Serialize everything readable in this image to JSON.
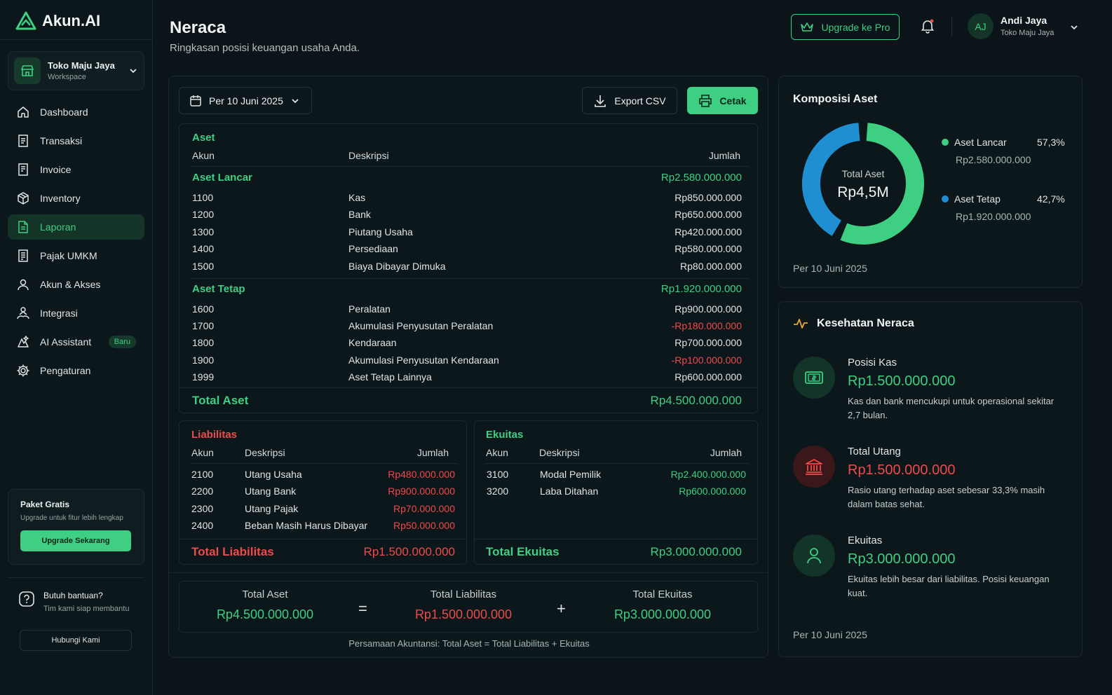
{
  "brand": {
    "name": "Akun.AI"
  },
  "workspace": {
    "name": "Toko Maju Jaya",
    "sub": "Workspace"
  },
  "nav": [
    {
      "label": "Dashboard",
      "icon": "home-icon"
    },
    {
      "label": "Transaksi",
      "icon": "receipt-icon"
    },
    {
      "label": "Invoice",
      "icon": "invoice-icon"
    },
    {
      "label": "Inventory",
      "icon": "box-icon"
    },
    {
      "label": "Laporan",
      "icon": "report-icon",
      "active": true
    },
    {
      "label": "Pajak UMKM",
      "icon": "tax-icon"
    },
    {
      "label": "Akun & Akses",
      "icon": "user-icon"
    },
    {
      "label": "Integrasi",
      "icon": "integration-icon"
    },
    {
      "label": "AI Assistant",
      "icon": "ai-icon",
      "badge": "Baru"
    },
    {
      "label": "Pengaturan",
      "icon": "gear-icon"
    }
  ],
  "promo": {
    "title": "Paket Gratis",
    "sub": "Upgrade untuk fitur lebih lengkap",
    "button": "Upgrade Sekarang"
  },
  "help": {
    "title": "Butuh bantuan?",
    "sub": "Tim kami siap membantu",
    "button": "Hubungi Kami"
  },
  "header": {
    "title": "Neraca",
    "subtitle": "Ringkasan posisi keuangan usaha Anda.",
    "upgrade": "Upgrade ke Pro",
    "user_initials": "AJ",
    "user_name": "Andi Jaya",
    "user_org": "Toko Maju Jaya"
  },
  "toolbar": {
    "date": "Per 10 Juni 2025",
    "export": "Export CSV",
    "print": "Cetak"
  },
  "colors": {
    "accent": "#3ecf82",
    "negative": "#ef4a4a",
    "blue": "#1f8fd1"
  },
  "aset": {
    "title": "Aset",
    "cols": {
      "akun": "Akun",
      "deskripsi": "Deskripsi",
      "jumlah": "Jumlah"
    },
    "lancar": {
      "label": "Aset Lancar",
      "total": "Rp2.580.000.000",
      "rows": [
        {
          "akun": "1100",
          "desc": "Kas",
          "amount": "Rp850.000.000"
        },
        {
          "akun": "1200",
          "desc": "Bank",
          "amount": "Rp650.000.000"
        },
        {
          "akun": "1300",
          "desc": "Piutang Usaha",
          "amount": "Rp420.000.000"
        },
        {
          "akun": "1400",
          "desc": "Persediaan",
          "amount": "Rp580.000.000"
        },
        {
          "akun": "1500",
          "desc": "Biaya Dibayar Dimuka",
          "amount": "Rp80.000.000"
        }
      ]
    },
    "tetap": {
      "label": "Aset Tetap",
      "total": "Rp1.920.000.000",
      "rows": [
        {
          "akun": "1600",
          "desc": "Peralatan",
          "amount": "Rp900.000.000"
        },
        {
          "akun": "1700",
          "desc": "Akumulasi Penyusutan Peralatan",
          "amount": "-Rp180.000.000",
          "negative": true
        },
        {
          "akun": "1800",
          "desc": "Kendaraan",
          "amount": "Rp700.000.000"
        },
        {
          "akun": "1900",
          "desc": "Akumulasi Penyusutan Kendaraan",
          "amount": "-Rp100.000.000",
          "negative": true
        },
        {
          "akun": "1999",
          "desc": "Aset Tetap Lainnya",
          "amount": "Rp600.000.000"
        }
      ]
    },
    "total_label": "Total Aset",
    "total": "Rp4.500.000.000"
  },
  "liabilitas": {
    "title": "Liabilitas",
    "cols": {
      "akun": "Akun",
      "deskripsi": "Deskripsi",
      "jumlah": "Jumlah"
    },
    "rows": [
      {
        "akun": "2100",
        "desc": "Utang Usaha",
        "amount": "Rp480.000.000"
      },
      {
        "akun": "2200",
        "desc": "Utang Bank",
        "amount": "Rp900.000.000"
      },
      {
        "akun": "2300",
        "desc": "Utang Pajak",
        "amount": "Rp70.000.000"
      },
      {
        "akun": "2400",
        "desc": "Beban Masih Harus Dibayar",
        "amount": "Rp50.000.000"
      }
    ],
    "total_label": "Total Liabilitas",
    "total": "Rp1.500.000.000"
  },
  "ekuitas": {
    "title": "Ekuitas",
    "cols": {
      "akun": "Akun",
      "deskripsi": "Deskripsi",
      "jumlah": "Jumlah"
    },
    "rows": [
      {
        "akun": "3100",
        "desc": "Modal Pemilik",
        "amount": "Rp2.400.000.000"
      },
      {
        "akun": "3200",
        "desc": "Laba Ditahan",
        "amount": "Rp600.000.000"
      }
    ],
    "total_label": "Total Ekuitas",
    "total": "Rp3.000.000.000"
  },
  "equation": {
    "aset_label": "Total Aset",
    "aset": "Rp4.500.000.000",
    "eq": "=",
    "liab_label": "Total Liabilitas",
    "liab": "Rp1.500.000.000",
    "plus": "+",
    "ekuitas_label": "Total Ekuitas",
    "ekuitas": "Rp3.000.000.000",
    "note": "Persamaan Akuntansi: Total Aset = Total Liabilitas + Ekuitas"
  },
  "komposisi": {
    "title": "Komposisi Aset",
    "center_label": "Total Aset",
    "center_value": "Rp4,5M",
    "footer": "Per 10 Juni 2025"
  },
  "chart_data": {
    "type": "pie",
    "categories": [
      "Aset Lancar",
      "Aset Tetap"
    ],
    "values": [
      57.3,
      42.7
    ],
    "percent_labels": [
      "57,3%",
      "42,7%"
    ],
    "amounts": [
      "Rp2.580.000.000",
      "Rp1.920.000.000"
    ],
    "colors": [
      "#3ecf82",
      "#1f8fd1"
    ],
    "title": "Komposisi Aset"
  },
  "kesehatan": {
    "title": "Kesehatan Neraca",
    "items": [
      {
        "label": "Posisi Kas",
        "value": "Rp1.500.000.000",
        "desc": "Kas dan bank mencukupi untuk operasional sekitar 2,7 bulan.",
        "tone": "green",
        "icon": "cash-icon"
      },
      {
        "label": "Total Utang",
        "value": "Rp1.500.000.000",
        "desc": "Rasio utang terhadap aset sebesar 33,3% masih dalam batas sehat.",
        "tone": "red",
        "icon": "bank-icon"
      },
      {
        "label": "Ekuitas",
        "value": "Rp3.000.000.000",
        "desc": "Ekuitas lebih besar dari liabilitas. Posisi keuangan kuat.",
        "tone": "green",
        "icon": "person-icon"
      }
    ],
    "footer": "Per 10 Juni 2025"
  }
}
